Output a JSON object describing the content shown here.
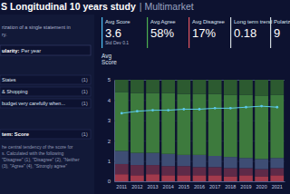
{
  "header": {
    "title": "S Longitudinal 10 years study",
    "subtitle": "| Multimarket"
  },
  "sidebar": {
    "description": [
      "rization of a single statement in",
      "ry."
    ],
    "granularity": {
      "label": "ularity:",
      "value": "Per year"
    },
    "filters": [
      {
        "label": "States",
        "count": "(1)"
      },
      {
        "label": "& Shopping",
        "count": "(1)"
      },
      {
        "label": "budget very carefully when...",
        "count": "(1)"
      }
    ],
    "metric": {
      "label": "tem: Score",
      "count": "(1)"
    },
    "metric_note": [
      "he central tendency of the score for",
      "s. Calculated with the following",
      "\"Disagree\" (1), \"Disagree\" (2), \"Neither",
      "(3), \"Agree\" (4), \"Strongly agree\""
    ]
  },
  "kpis": [
    {
      "label": "Avg Score",
      "value": 3.6,
      "note": "Std Dev 0.1",
      "color": "#4fc3f7"
    },
    {
      "label": "Avg Agree",
      "value": "58%",
      "color": "#4caf50"
    },
    {
      "label": "Avg Disagree",
      "value": "17%",
      "color": "#e05561"
    },
    {
      "label": "Long term trend",
      "value": 0.18,
      "color": "#cfd8dc"
    },
    {
      "label": "Polarization",
      "value": 9,
      "color": "#cfd8dc"
    }
  ],
  "chart_data": {
    "type": "bar",
    "stacked": true,
    "grid": true,
    "y_label": "Avg Score",
    "categories": [
      "2011",
      "2012",
      "2013",
      "2014",
      "2015",
      "2016",
      "2017",
      "2018",
      "2019",
      "2020",
      "2021"
    ],
    "ylim": [
      0,
      5
    ],
    "yticks": [
      0,
      1,
      2,
      3,
      4,
      5
    ],
    "series": [
      {
        "type": "bar",
        "color": "#a23a4c",
        "values": [
          0.35,
          0.3,
          0.35,
          0.3,
          0.3,
          0.3,
          0.3,
          0.25,
          0.3,
          0.25,
          0.3
        ]
      },
      {
        "type": "bar",
        "color": "#5e2a48",
        "values": [
          0.5,
          0.5,
          0.45,
          0.45,
          0.45,
          0.4,
          0.4,
          0.4,
          0.35,
          0.35,
          0.35
        ]
      },
      {
        "type": "bar",
        "color": "#3e4d74",
        "values": [
          0.65,
          0.6,
          0.6,
          0.6,
          0.55,
          0.6,
          0.55,
          0.55,
          0.5,
          0.5,
          0.5
        ]
      },
      {
        "type": "bar",
        "color": "#3d7a3d",
        "values": [
          2.9,
          2.95,
          2.95,
          3.0,
          3.0,
          3.0,
          3.05,
          3.05,
          3.1,
          3.1,
          3.1
        ]
      },
      {
        "type": "bar",
        "color": "#2c5a30",
        "values": [
          0.6,
          0.65,
          0.65,
          0.65,
          0.7,
          0.7,
          0.7,
          0.75,
          0.75,
          0.8,
          0.75
        ]
      },
      {
        "type": "line",
        "color": "#5bc8e8",
        "marker": "circle",
        "values": [
          3.35,
          3.45,
          3.5,
          3.5,
          3.55,
          3.55,
          3.6,
          3.6,
          3.65,
          3.7,
          3.65
        ]
      }
    ]
  }
}
